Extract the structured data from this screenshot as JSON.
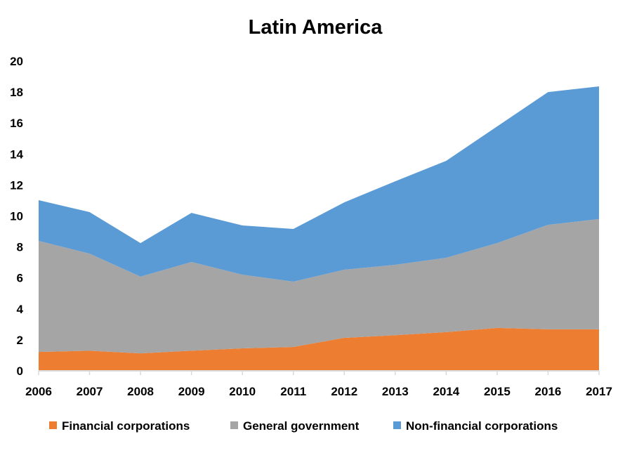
{
  "chart_data": {
    "type": "area",
    "stacked": true,
    "title": "Latin America",
    "xlabel": "",
    "ylabel": "",
    "x": [
      2006,
      2007,
      2008,
      2009,
      2010,
      2011,
      2012,
      2013,
      2014,
      2015,
      2016,
      2017
    ],
    "ylim": [
      0,
      20
    ],
    "yticks": [
      0,
      2,
      4,
      6,
      8,
      10,
      12,
      14,
      16,
      18,
      20
    ],
    "grid": false,
    "legend_position": "bottom",
    "series": [
      {
        "name": "Financial corporations",
        "color": "#ED7D31",
        "values": [
          1.22,
          1.3,
          1.13,
          1.3,
          1.45,
          1.54,
          2.13,
          2.3,
          2.5,
          2.77,
          2.68,
          2.68
        ]
      },
      {
        "name": "General government",
        "color": "#A5A5A5",
        "values": [
          7.17,
          6.27,
          4.95,
          5.73,
          4.76,
          4.22,
          4.4,
          4.55,
          4.8,
          5.48,
          6.75,
          7.12
        ]
      },
      {
        "name": "Non-financial corporations",
        "color": "#5B9BD5",
        "values": [
          2.63,
          2.68,
          2.17,
          3.17,
          3.18,
          3.4,
          4.35,
          5.39,
          6.26,
          7.53,
          8.57,
          8.57
        ]
      }
    ]
  }
}
